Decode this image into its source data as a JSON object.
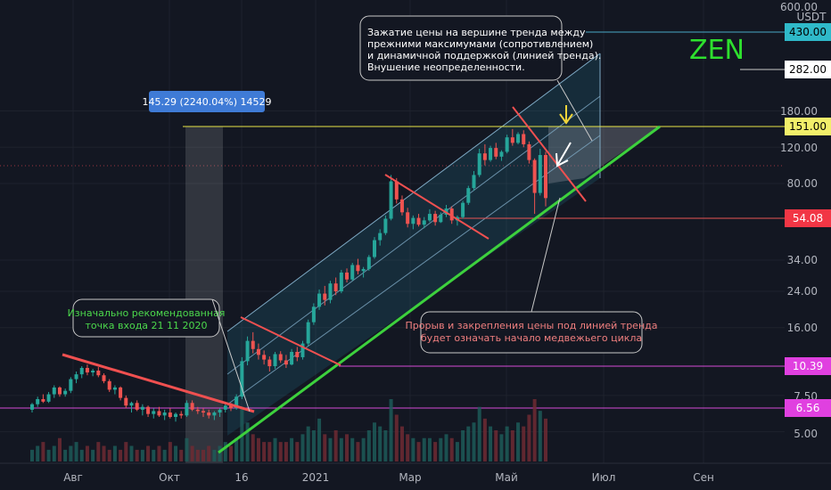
{
  "chart_data": {
    "type": "candlestick",
    "symbol": "ZEN",
    "quote_currency": "USDT",
    "scale": "log",
    "x_tick_labels": [
      "Авг",
      "Окт",
      "16",
      "2021",
      "Мар",
      "Май",
      "Июл",
      "Сен"
    ],
    "y_tick_labels": [
      "600.00",
      "180.00",
      "120.00",
      "80.00",
      "34.00",
      "24.00",
      "16.00",
      "7.50",
      "5.00"
    ],
    "price_tags": [
      {
        "value": "430.00",
        "style": "cyan"
      },
      {
        "value": "282.00",
        "style": "white"
      },
      {
        "value": "151.00",
        "style": "yellow"
      },
      {
        "value": "54.08",
        "style": "red"
      },
      {
        "value": "10.39",
        "style": "magenta"
      },
      {
        "value": "6.56",
        "style": "magenta"
      }
    ],
    "measure_label": "145.29 (2240.04%) 14529",
    "annotations": {
      "top": "Зажатие цены на вершине тренда между прежними максимумами (сопротивлением) и динамичной поддержкой (линией тренда). Внушение неопределенности.",
      "entry": "Изначально рекомендованная точка входа 21 11 2020",
      "breakout": "Прорыв и закрепления цены под линией тренда будет означать начало медвежьего цикла"
    },
    "candles_ohlc": [
      [
        6.4,
        6.9,
        6.2,
        6.8
      ],
      [
        6.8,
        7.4,
        6.6,
        7.2
      ],
      [
        7.2,
        7.6,
        6.9,
        7.0
      ],
      [
        7.0,
        7.8,
        6.9,
        7.6
      ],
      [
        7.6,
        8.4,
        7.3,
        8.2
      ],
      [
        8.2,
        8.3,
        7.4,
        7.6
      ],
      [
        7.6,
        8.1,
        7.4,
        7.9
      ],
      [
        7.9,
        9.2,
        7.7,
        9.0
      ],
      [
        9.0,
        9.8,
        8.6,
        9.5
      ],
      [
        9.5,
        10.4,
        9.1,
        10.2
      ],
      [
        10.2,
        10.6,
        9.4,
        9.7
      ],
      [
        9.7,
        10.1,
        9.3,
        9.9
      ],
      [
        9.9,
        10.3,
        9.2,
        9.4
      ],
      [
        9.4,
        9.6,
        8.6,
        8.8
      ],
      [
        8.8,
        9.0,
        7.8,
        8.0
      ],
      [
        8.0,
        8.4,
        7.6,
        8.2
      ],
      [
        8.2,
        8.3,
        7.1,
        7.3
      ],
      [
        7.3,
        7.5,
        6.5,
        6.7
      ],
      [
        6.7,
        7.0,
        6.2,
        6.9
      ],
      [
        6.9,
        7.1,
        6.3,
        6.4
      ],
      [
        6.4,
        6.8,
        6.0,
        6.6
      ],
      [
        6.6,
        6.7,
        5.9,
        6.1
      ],
      [
        6.1,
        6.5,
        5.8,
        6.3
      ],
      [
        6.3,
        6.6,
        5.9,
        6.0
      ],
      [
        6.0,
        6.4,
        5.7,
        6.2
      ],
      [
        6.2,
        6.5,
        5.8,
        5.9
      ],
      [
        5.9,
        6.2,
        5.6,
        6.1
      ],
      [
        6.1,
        6.3,
        5.8,
        6.0
      ],
      [
        6.0,
        7.1,
        5.9,
        6.9
      ],
      [
        6.9,
        7.1,
        6.3,
        6.4
      ],
      [
        6.4,
        6.6,
        6.1,
        6.3
      ],
      [
        6.3,
        6.5,
        5.9,
        6.2
      ],
      [
        6.2,
        6.4,
        5.8,
        6.0
      ],
      [
        6.0,
        6.3,
        5.7,
        6.2
      ],
      [
        6.2,
        6.5,
        5.9,
        6.4
      ],
      [
        6.4,
        6.9,
        6.2,
        6.7
      ],
      [
        6.7,
        6.9,
        6.3,
        6.5
      ],
      [
        6.5,
        7.6,
        6.4,
        7.4
      ],
      [
        7.4,
        11.5,
        7.2,
        11.0
      ],
      [
        11.0,
        14.5,
        10.5,
        13.8
      ],
      [
        13.8,
        15.2,
        12.0,
        12.6
      ],
      [
        12.6,
        13.4,
        11.2,
        11.8
      ],
      [
        11.8,
        12.4,
        10.6,
        11.2
      ],
      [
        11.2,
        11.6,
        9.8,
        10.4
      ],
      [
        10.4,
        12.2,
        10.1,
        11.9
      ],
      [
        11.9,
        12.3,
        10.8,
        11.1
      ],
      [
        11.1,
        11.8,
        10.2,
        10.6
      ],
      [
        10.6,
        12.6,
        10.5,
        12.2
      ],
      [
        12.2,
        12.9,
        11.0,
        11.5
      ],
      [
        11.5,
        13.8,
        11.2,
        13.4
      ],
      [
        13.4,
        17.5,
        13.0,
        17.0
      ],
      [
        17.0,
        21.0,
        16.5,
        20.2
      ],
      [
        20.2,
        24.5,
        19.5,
        23.4
      ],
      [
        23.4,
        25.5,
        20.5,
        21.8
      ],
      [
        21.8,
        27.0,
        21.0,
        26.2
      ],
      [
        26.2,
        28.0,
        23.0,
        24.0
      ],
      [
        24.0,
        30.5,
        23.5,
        29.6
      ],
      [
        29.6,
        31.0,
        26.5,
        27.4
      ],
      [
        27.4,
        33.0,
        27.0,
        32.2
      ],
      [
        32.2,
        34.5,
        29.0,
        30.1
      ],
      [
        30.1,
        31.5,
        28.0,
        30.8
      ],
      [
        30.8,
        36.0,
        30.2,
        35.2
      ],
      [
        35.2,
        44.0,
        34.5,
        42.5
      ],
      [
        42.5,
        48.0,
        40.0,
        46.0
      ],
      [
        46.0,
        56.0,
        45.0,
        54.0
      ],
      [
        54.0,
        88.0,
        53.0,
        82.0
      ],
      [
        82.0,
        85.0,
        64.0,
        67.0
      ],
      [
        67.0,
        70.0,
        56.0,
        58.0
      ],
      [
        58.0,
        61.0,
        49.0,
        51.0
      ],
      [
        51.0,
        56.0,
        48.0,
        54.5
      ],
      [
        54.5,
        57.0,
        49.5,
        50.5
      ],
      [
        50.5,
        55.0,
        48.5,
        53.0
      ],
      [
        53.0,
        60.0,
        52.0,
        57.0
      ],
      [
        57.0,
        59.0,
        50.0,
        52.0
      ],
      [
        52.0,
        58.0,
        51.5,
        56.5
      ],
      [
        56.5,
        63.0,
        55.0,
        60.5
      ],
      [
        60.5,
        62.0,
        51.0,
        53.0
      ],
      [
        53.0,
        56.0,
        50.0,
        55.0
      ],
      [
        55.0,
        66.0,
        54.0,
        64.5
      ],
      [
        64.5,
        78.0,
        63.0,
        76.0
      ],
      [
        76.0,
        92.0,
        74.0,
        88.0
      ],
      [
        88.0,
        118.0,
        86.0,
        112.0
      ],
      [
        112.0,
        124.0,
        98.0,
        104.0
      ],
      [
        104.0,
        122.0,
        102.0,
        119.0
      ],
      [
        119.0,
        126.0,
        105.0,
        108.0
      ],
      [
        108.0,
        116.0,
        103.0,
        114.0
      ],
      [
        114.0,
        138.0,
        112.0,
        134.0
      ],
      [
        134.0,
        147.0,
        122.0,
        126.0
      ],
      [
        126.0,
        142.0,
        124.0,
        139.0
      ],
      [
        139.0,
        145.0,
        120.0,
        124.0
      ],
      [
        124.0,
        128.0,
        100.0,
        104.0
      ],
      [
        104.0,
        106.0,
        57.0,
        72.0
      ],
      [
        72.0,
        118.0,
        70.0,
        110.0
      ],
      [
        110.0,
        114.0,
        62.0,
        68.0
      ]
    ],
    "volumes": [
      3,
      4,
      5,
      3,
      4,
      6,
      3,
      4,
      5,
      3,
      4,
      3,
      5,
      4,
      3,
      4,
      3,
      5,
      4,
      3,
      3,
      4,
      3,
      4,
      3,
      5,
      4,
      3,
      6,
      4,
      3,
      3,
      4,
      3,
      4,
      5,
      4,
      6,
      14,
      10,
      7,
      6,
      5,
      5,
      6,
      5,
      5,
      6,
      5,
      7,
      9,
      8,
      11,
      7,
      6,
      8,
      6,
      7,
      6,
      5,
      6,
      8,
      10,
      9,
      8,
      16,
      12,
      9,
      7,
      6,
      5,
      6,
      6,
      5,
      6,
      7,
      6,
      5,
      8,
      9,
      10,
      14,
      11,
      9,
      8,
      7,
      9,
      8,
      10,
      9,
      12,
      16,
      13,
      11
    ]
  }
}
